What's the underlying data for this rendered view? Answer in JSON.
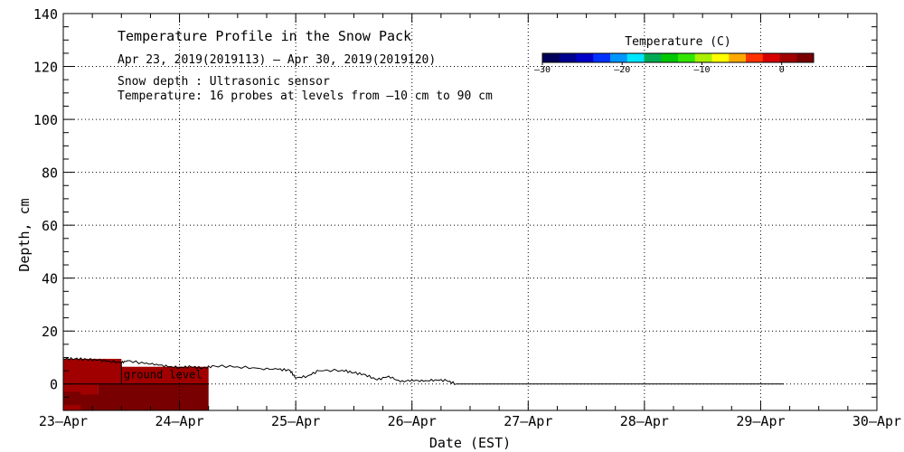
{
  "chart_data": {
    "type": "heatmap",
    "title": "Temperature Profile in the Snow Pack",
    "subtitle": "Apr 23, 2019(2019113) – Apr 30, 2019(2019120)",
    "notes": [
      "Snow depth : Ultrasonic sensor",
      "Temperature: 16 probes at levels from –10 cm to 90 cm"
    ],
    "xlabel": "Date (EST)",
    "ylabel": "Depth, cm",
    "x_ticks": [
      "23–Apr",
      "24–Apr",
      "25–Apr",
      "26–Apr",
      "27–Apr",
      "28–Apr",
      "29–Apr",
      "30–Apr"
    ],
    "xlim": [
      "2019-04-23",
      "2019-04-30"
    ],
    "ylim": [
      -10,
      140
    ],
    "y_ticks": [
      0,
      20,
      40,
      60,
      80,
      100,
      120,
      140
    ],
    "grid": true,
    "ground_level_label": "ground level",
    "ground_level_cm": 0,
    "colorbar": {
      "label": "Temperature (C)",
      "ticks": [
        -30,
        -20,
        -10,
        0
      ],
      "range": [
        -30,
        4
      ],
      "colors": [
        "#00005a",
        "#000090",
        "#0000c8",
        "#0032ff",
        "#0096ff",
        "#00e6ff",
        "#00aa55",
        "#00c800",
        "#32e600",
        "#aaf000",
        "#ffff00",
        "#ffaa00",
        "#ff3200",
        "#d70000",
        "#a00000",
        "#780000"
      ]
    },
    "snow_depth_series": {
      "name": "Snow depth",
      "x_days": [
        0,
        0.1,
        0.2,
        0.3,
        0.4,
        0.5,
        0.55,
        0.7,
        0.8,
        0.9,
        1.0,
        1.1,
        1.2,
        1.3,
        1.5,
        1.7,
        1.85,
        1.95,
        2.0,
        2.1,
        2.2,
        2.4,
        2.5,
        2.6,
        2.7,
        2.8,
        2.9,
        3.0,
        3.1,
        3.2,
        3.3,
        3.38,
        3.4,
        3.5,
        4.0,
        5.0,
        6.0,
        6.2
      ],
      "depth_cm": [
        9.5,
        9.5,
        9.3,
        9.0,
        8.6,
        8.0,
        8.8,
        7.7,
        7.5,
        6.5,
        6.3,
        6.5,
        6.0,
        6.8,
        6.5,
        5.8,
        5.5,
        5.2,
        2.2,
        3.0,
        5.0,
        5.2,
        4.2,
        3.5,
        1.5,
        3.0,
        0.8,
        1.5,
        1.0,
        1.6,
        1.2,
        0.0,
        0.0,
        0.0,
        0.0,
        0.0,
        0.0,
        0.0
      ]
    },
    "temperature_cells": [
      {
        "x_start": 0.0,
        "x_end": 0.5,
        "depth_bottom": 0,
        "depth_top": 9.5,
        "temp_c": 0.5
      },
      {
        "x_start": 0.5,
        "x_end": 1.25,
        "depth_bottom": 0,
        "depth_top": 6.5,
        "temp_c": 0.5
      },
      {
        "x_start": 0.0,
        "x_end": 0.3,
        "depth_bottom": -10,
        "depth_top": 0,
        "temp_c": 1.5
      },
      {
        "x_start": 0.3,
        "x_end": 0.7,
        "depth_bottom": -10,
        "depth_top": 0,
        "temp_c": 3.5
      },
      {
        "x_start": 0.7,
        "x_end": 1.25,
        "depth_bottom": -10,
        "depth_top": 0,
        "temp_c": 3.0
      },
      {
        "x_start": 0.0,
        "x_end": 0.15,
        "depth_bottom": -8,
        "depth_top": -3,
        "temp_c": 2.5
      },
      {
        "x_start": 0.15,
        "x_end": 0.45,
        "depth_bottom": -10,
        "depth_top": -4,
        "temp_c": 3.0
      }
    ]
  }
}
